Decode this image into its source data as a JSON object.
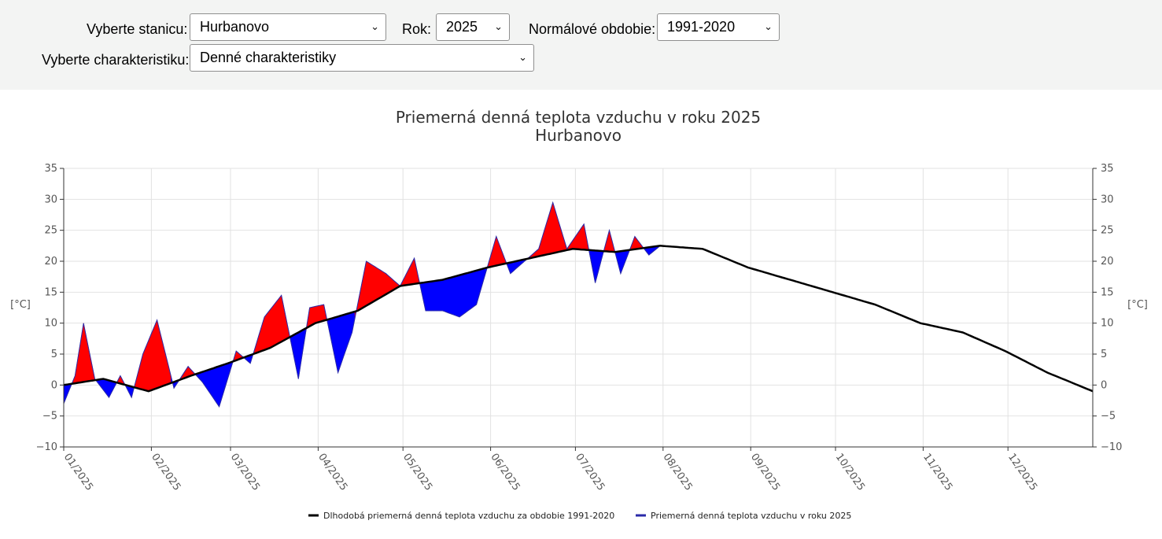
{
  "filters": {
    "station_label": "Vyberte stanicu:",
    "station_value": "Hurbanovo",
    "year_label": "Rok:",
    "year_value": "2025",
    "normal_label": "Normálové obdobie:",
    "normal_value": "1991-2020",
    "characteristic_label": "Vyberte charakteristiku:",
    "characteristic_value": "Denné charakteristiky"
  },
  "chart_data": {
    "type": "area",
    "title": "Priemerná denná teplota vzduchu v roku 2025",
    "subtitle": "Hurbanovo",
    "ylabel_left": "[°C]",
    "ylabel_right": "[°C]",
    "ylim": [
      -10,
      35
    ],
    "yticks": [
      "35",
      "30",
      "25",
      "20",
      "15",
      "10",
      "5",
      "0",
      "−5",
      "−10"
    ],
    "xlim": [
      "2025-01-01",
      "2025-12-31"
    ],
    "xticks": [
      "01/2025",
      "02/2025",
      "03/2025",
      "04/2025",
      "05/2025",
      "06/2025",
      "07/2025",
      "08/2025",
      "09/2025",
      "10/2025",
      "11/2025",
      "12/2025"
    ],
    "grid": true,
    "legend_position": "bottom-center",
    "colors": {
      "normal": "#000000",
      "actual_line": "#2a2aa8",
      "above": "#ff0000",
      "below": "#0000ff"
    },
    "series": [
      {
        "name": "Dlhodobá priemerná denná teplota vzduchu za obdobie 1991-2020",
        "points": [
          [
            "2025-01-01",
            0
          ],
          [
            "2025-01-15",
            1
          ],
          [
            "2025-01-31",
            -1
          ],
          [
            "2025-02-15",
            1.5
          ],
          [
            "2025-02-28",
            3.5
          ],
          [
            "2025-03-15",
            6
          ],
          [
            "2025-03-31",
            10
          ],
          [
            "2025-04-15",
            12
          ],
          [
            "2025-04-30",
            16
          ],
          [
            "2025-05-15",
            17
          ],
          [
            "2025-05-31",
            19
          ],
          [
            "2025-06-15",
            20.5
          ],
          [
            "2025-06-30",
            22
          ],
          [
            "2025-07-15",
            21.5
          ],
          [
            "2025-07-31",
            22.5
          ],
          [
            "2025-08-15",
            22
          ],
          [
            "2025-08-31",
            19
          ],
          [
            "2025-09-15",
            17
          ],
          [
            "2025-09-30",
            15
          ],
          [
            "2025-10-15",
            13
          ],
          [
            "2025-10-31",
            10
          ],
          [
            "2025-11-15",
            8.5
          ],
          [
            "2025-11-30",
            5.5
          ],
          [
            "2025-12-15",
            2
          ],
          [
            "2025-12-31",
            -1
          ]
        ]
      },
      {
        "name": "Priemerná denná teplota vzduchu v roku 2025",
        "points": [
          [
            "2025-01-01",
            -3
          ],
          [
            "2025-01-05",
            1.5
          ],
          [
            "2025-01-08",
            10
          ],
          [
            "2025-01-12",
            1
          ],
          [
            "2025-01-17",
            -2
          ],
          [
            "2025-01-21",
            1.5
          ],
          [
            "2025-01-25",
            -2
          ],
          [
            "2025-01-29",
            5
          ],
          [
            "2025-02-03",
            10.5
          ],
          [
            "2025-02-09",
            -0.5
          ],
          [
            "2025-02-14",
            3
          ],
          [
            "2025-02-19",
            0.5
          ],
          [
            "2025-02-25",
            -3.5
          ],
          [
            "2025-03-03",
            5.5
          ],
          [
            "2025-03-08",
            3.5
          ],
          [
            "2025-03-13",
            11
          ],
          [
            "2025-03-19",
            14.5
          ],
          [
            "2025-03-25",
            1
          ],
          [
            "2025-03-29",
            12.5
          ],
          [
            "2025-04-03",
            13
          ],
          [
            "2025-04-08",
            2
          ],
          [
            "2025-04-13",
            8.5
          ],
          [
            "2025-04-18",
            20
          ],
          [
            "2025-04-25",
            18
          ],
          [
            "2025-04-30",
            16
          ],
          [
            "2025-05-05",
            20.5
          ],
          [
            "2025-05-09",
            12
          ],
          [
            "2025-05-15",
            12
          ],
          [
            "2025-05-21",
            11
          ],
          [
            "2025-05-27",
            13
          ],
          [
            "2025-06-03",
            24
          ],
          [
            "2025-06-08",
            18
          ],
          [
            "2025-06-13",
            20
          ],
          [
            "2025-06-18",
            22
          ],
          [
            "2025-06-23",
            29.5
          ],
          [
            "2025-06-28",
            22
          ],
          [
            "2025-07-04",
            26
          ],
          [
            "2025-07-08",
            16.5
          ],
          [
            "2025-07-13",
            25
          ],
          [
            "2025-07-17",
            18
          ],
          [
            "2025-07-22",
            24
          ],
          [
            "2025-07-27",
            21
          ],
          [
            "2025-07-31",
            22.5
          ]
        ]
      }
    ]
  }
}
